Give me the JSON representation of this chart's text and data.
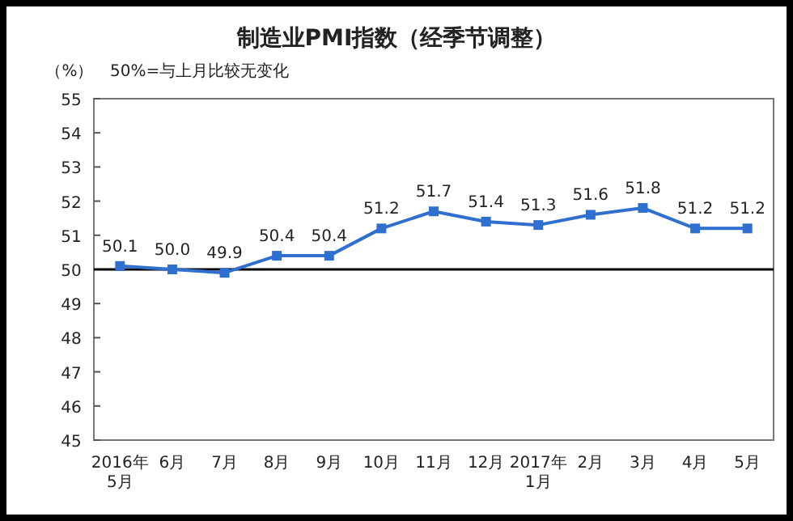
{
  "chart_data": {
    "type": "line",
    "title": "制造业PMI指数（经季节调整）",
    "ylabel": "（%）",
    "annotations": [
      "50%=与上月比较无变化"
    ],
    "categories": [
      "2016年\n5月",
      "6月",
      "7月",
      "8月",
      "9月",
      "10月",
      "11月",
      "12月",
      "2017年\n1月",
      "2月",
      "3月",
      "4月",
      "5月"
    ],
    "series": [
      {
        "color": "#2e6fcf",
        "values": [
          50.1,
          50.0,
          49.9,
          50.4,
          50.4,
          51.2,
          51.7,
          51.4,
          51.3,
          51.6,
          51.8,
          51.2,
          51.2
        ],
        "value_labels": [
          "50.1",
          "50.0",
          "49.9",
          "50.4",
          "50.4",
          "51.2",
          "51.7",
          "51.4",
          "51.3",
          "51.6",
          "51.8",
          "51.2",
          "51.2"
        ]
      }
    ],
    "ylim": [
      45,
      55
    ],
    "yticks": [
      45,
      46,
      47,
      48,
      49,
      50,
      51,
      52,
      53,
      54,
      55
    ],
    "ref_lines": [
      {
        "axis": "y",
        "value": 50,
        "color": "#000000"
      }
    ],
    "marker": "square",
    "line_style": "solid",
    "grid": false
  }
}
